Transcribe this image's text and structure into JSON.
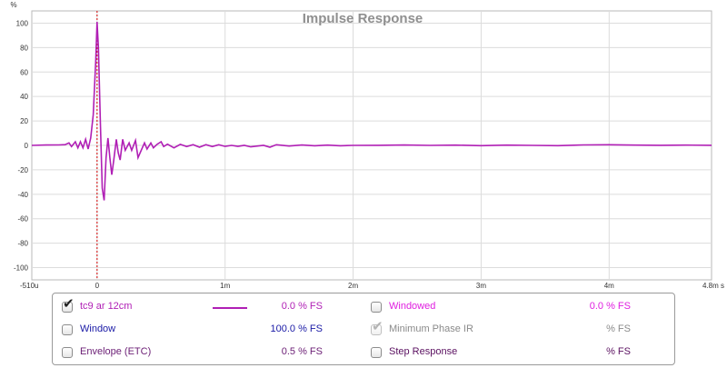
{
  "chart_data": {
    "type": "line",
    "title": "Impulse Response",
    "ylabel": "%",
    "xlabel": "",
    "xlim": [
      -0.51,
      4.8
    ],
    "ylim": [
      -110,
      110
    ],
    "x_unit": "ms",
    "grid": true,
    "x_ticks": [
      {
        "value": -0.51,
        "label": "-510u"
      },
      {
        "value": 0,
        "label": "0"
      },
      {
        "value": 1,
        "label": "1m"
      },
      {
        "value": 2,
        "label": "2m"
      },
      {
        "value": 3,
        "label": "3m"
      },
      {
        "value": 4,
        "label": "4m"
      },
      {
        "value": 4.8,
        "label": "4.8m s"
      }
    ],
    "y_ticks": [
      100,
      80,
      60,
      40,
      20,
      0,
      -20,
      -40,
      -60,
      -80,
      -100
    ],
    "marker_x": 0,
    "series": [
      {
        "name": "tc9 ar 12cm",
        "color": "#b01fb5",
        "points": [
          [
            -0.51,
            0
          ],
          [
            -0.4,
            0.3
          ],
          [
            -0.3,
            0.4
          ],
          [
            -0.25,
            0.6
          ],
          [
            -0.22,
            2
          ],
          [
            -0.2,
            -1
          ],
          [
            -0.17,
            3
          ],
          [
            -0.15,
            -2
          ],
          [
            -0.13,
            3
          ],
          [
            -0.11,
            -2
          ],
          [
            -0.09,
            5
          ],
          [
            -0.07,
            -3
          ],
          [
            -0.05,
            6
          ],
          [
            -0.03,
            25
          ],
          [
            -0.01,
            70
          ],
          [
            0.0,
            101
          ],
          [
            0.01,
            80
          ],
          [
            0.025,
            20
          ],
          [
            0.04,
            -35
          ],
          [
            0.055,
            -45
          ],
          [
            0.07,
            -10
          ],
          [
            0.085,
            6
          ],
          [
            0.1,
            -10
          ],
          [
            0.115,
            -24
          ],
          [
            0.13,
            -12
          ],
          [
            0.15,
            5
          ],
          [
            0.165,
            -6
          ],
          [
            0.18,
            -12
          ],
          [
            0.2,
            5
          ],
          [
            0.22,
            -4
          ],
          [
            0.25,
            2
          ],
          [
            0.27,
            -4
          ],
          [
            0.3,
            4
          ],
          [
            0.32,
            -10
          ],
          [
            0.345,
            -4
          ],
          [
            0.37,
            2
          ],
          [
            0.39,
            -3
          ],
          [
            0.42,
            2
          ],
          [
            0.44,
            -2
          ],
          [
            0.47,
            1
          ],
          [
            0.5,
            3
          ],
          [
            0.52,
            -1
          ],
          [
            0.55,
            1
          ],
          [
            0.6,
            -2
          ],
          [
            0.65,
            0.8
          ],
          [
            0.7,
            -1
          ],
          [
            0.75,
            0.6
          ],
          [
            0.8,
            -1.5
          ],
          [
            0.85,
            0.6
          ],
          [
            0.9,
            -1
          ],
          [
            0.95,
            0.5
          ],
          [
            1.0,
            -0.8
          ],
          [
            1.05,
            0
          ],
          [
            1.1,
            -0.8
          ],
          [
            1.15,
            0
          ],
          [
            1.2,
            -1.2
          ],
          [
            1.3,
            0
          ],
          [
            1.35,
            -1.5
          ],
          [
            1.4,
            0.5
          ],
          [
            1.5,
            -0.5
          ],
          [
            1.6,
            0.3
          ],
          [
            1.7,
            -0.3
          ],
          [
            1.8,
            0.2
          ],
          [
            1.9,
            -0.3
          ],
          [
            2.0,
            0
          ],
          [
            2.2,
            0.1
          ],
          [
            2.4,
            0.3
          ],
          [
            2.6,
            0
          ],
          [
            2.8,
            0.2
          ],
          [
            3.0,
            -0.2
          ],
          [
            3.2,
            0.2
          ],
          [
            3.4,
            0
          ],
          [
            3.6,
            -0.2
          ],
          [
            3.8,
            0.4
          ],
          [
            4.0,
            0.5
          ],
          [
            4.2,
            0.2
          ],
          [
            4.4,
            0.1
          ],
          [
            4.6,
            0.2
          ],
          [
            4.8,
            0.1
          ]
        ]
      }
    ]
  },
  "legend": {
    "rows": [
      [
        {
          "id": "trace",
          "label": "tc9 ar 12cm",
          "checked": true,
          "dim": false,
          "color": "#b01fb5",
          "value": "0.0 % FS",
          "value_color": "#b01fb5",
          "swatch": true
        },
        {
          "id": "windowed",
          "label": "Windowed",
          "checked": false,
          "dim": false,
          "color": "#e020e0",
          "value": "0.0 % FS",
          "value_color": "#e020e0",
          "swatch": false
        }
      ],
      [
        {
          "id": "window",
          "label": "Window",
          "checked": false,
          "dim": false,
          "color": "#1a1aa6",
          "value": "100.0 % FS",
          "value_color": "#1a1aa6",
          "swatch": false
        },
        {
          "id": "minphase",
          "label": "Minimum Phase IR",
          "checked": true,
          "dim": true,
          "color": "#8a8a8a",
          "value": "% FS",
          "value_color": "#8a8a8a",
          "swatch": false
        }
      ],
      [
        {
          "id": "envelope",
          "label": "Envelope (ETC)",
          "checked": false,
          "dim": false,
          "color": "#6b1e75",
          "value": "0.5 % FS",
          "value_color": "#6b1e75",
          "swatch": false
        },
        {
          "id": "step",
          "label": "Step Response",
          "checked": false,
          "dim": false,
          "color": "#5a1060",
          "value": "% FS",
          "value_color": "#5a1060",
          "swatch": false
        }
      ]
    ]
  }
}
